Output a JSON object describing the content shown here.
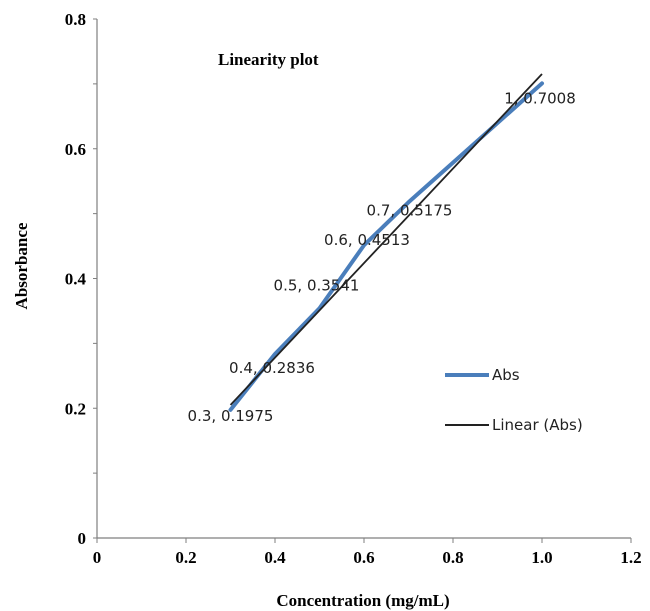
{
  "chart_data": {
    "type": "line",
    "title": "Linearity plot",
    "xlabel": "Concentration (mg/mL)",
    "ylabel": "Absorbance",
    "xlim": [
      0,
      1.2
    ],
    "ylim": [
      0,
      0.8
    ],
    "xticks": [
      "0",
      "0.2",
      "0.4",
      "0.6",
      "0.8",
      "1.0",
      "1.2"
    ],
    "yticks": [
      "0",
      "0.2",
      "0.4",
      "0.6",
      "0.8"
    ],
    "grid": false,
    "legend_position": "right",
    "series": [
      {
        "name": "Abs",
        "color": "#4a7ebb",
        "x": [
          0.3,
          0.4,
          0.5,
          0.6,
          0.7,
          1.0
        ],
        "y": [
          0.1975,
          0.2836,
          0.3541,
          0.4513,
          0.5175,
          0.7008
        ],
        "point_labels": [
          "0.3, 0.1975",
          "0.4, 0.2836",
          "0.5, 0.3541",
          "0.6, 0.4513",
          "0.7, 0.5175",
          "1, 0.7008"
        ]
      },
      {
        "name": "Linear (Abs)",
        "color": "#222222",
        "x": [
          0.3,
          1.0
        ],
        "y": [
          0.2051,
          0.7153
        ]
      }
    ]
  }
}
